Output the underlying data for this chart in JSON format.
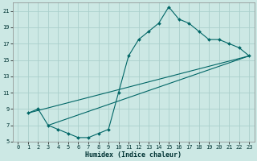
{
  "xlabel": "Humidex (Indice chaleur)",
  "bg_color": "#cce8e4",
  "grid_color": "#aacfcc",
  "line_color": "#006666",
  "xlim": [
    -0.5,
    23.5
  ],
  "ylim": [
    5,
    22
  ],
  "xticks": [
    0,
    1,
    2,
    3,
    4,
    5,
    6,
    7,
    8,
    9,
    10,
    11,
    12,
    13,
    14,
    15,
    16,
    17,
    18,
    19,
    20,
    21,
    22,
    23
  ],
  "yticks": [
    5,
    7,
    9,
    11,
    13,
    15,
    17,
    19,
    21
  ],
  "curve1_x": [
    1,
    2,
    3,
    4,
    5,
    6,
    7,
    8,
    9,
    10,
    11,
    12,
    13,
    14,
    15,
    16,
    17,
    18,
    19,
    20,
    21,
    22,
    23
  ],
  "curve1_y": [
    8.5,
    9.0,
    7.0,
    6.5,
    6.0,
    5.5,
    5.5,
    6.0,
    6.5,
    11.0,
    15.5,
    17.5,
    18.5,
    19.5,
    21.5,
    20.0,
    19.5,
    18.5,
    17.5,
    17.5,
    17.0,
    16.5,
    15.5
  ],
  "line1_x": [
    1,
    23
  ],
  "line1_y": [
    8.5,
    15.5
  ],
  "line2_x": [
    3,
    23
  ],
  "line2_y": [
    7.0,
    15.5
  ],
  "tick_fontsize": 5.0,
  "xlabel_fontsize": 6.0
}
